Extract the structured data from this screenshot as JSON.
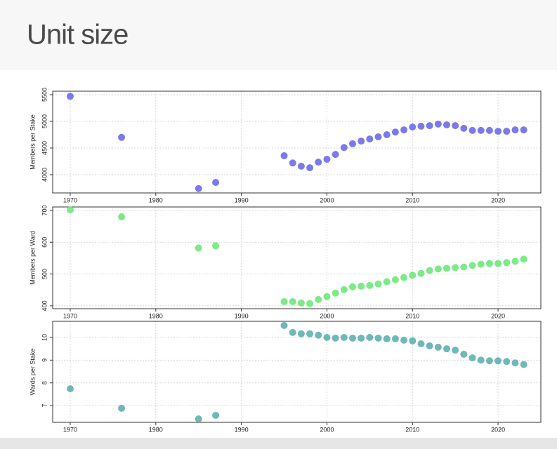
{
  "title": "Unit size",
  "chart_data": [
    {
      "type": "scatter",
      "y_label": "Members per Stake",
      "color": "#6b6bea",
      "x": [
        1970,
        1976,
        1985,
        1987,
        1995,
        1996,
        1997,
        1998,
        1999,
        2000,
        2001,
        2002,
        2003,
        2004,
        2005,
        2006,
        2007,
        2008,
        2009,
        2010,
        2011,
        2012,
        2013,
        2014,
        2015,
        2016,
        2017,
        2018,
        2019,
        2020,
        2021,
        2022,
        2023
      ],
      "values": [
        5470,
        4700,
        3740,
        3855,
        4355,
        4220,
        4160,
        4130,
        4235,
        4290,
        4380,
        4510,
        4580,
        4630,
        4670,
        4710,
        4750,
        4800,
        4840,
        4895,
        4910,
        4920,
        4950,
        4935,
        4920,
        4870,
        4830,
        4830,
        4830,
        4815,
        4815,
        4840,
        4840
      ],
      "xlim": [
        1967.95,
        2025
      ],
      "xticks": [
        1970,
        1980,
        1990,
        2000,
        2010,
        2020
      ],
      "ylim": [
        3658,
        5566
      ],
      "yticks": [
        4000,
        4500,
        5000,
        5500
      ],
      "grid": true
    },
    {
      "type": "scatter",
      "y_label": "Members per Ward",
      "color": "#6de87a",
      "x": [
        1970,
        1976,
        1985,
        1987,
        1995,
        1996,
        1997,
        1998,
        1999,
        2000,
        2001,
        2002,
        2003,
        2004,
        2005,
        2006,
        2007,
        2008,
        2009,
        2010,
        2011,
        2012,
        2013,
        2014,
        2015,
        2016,
        2017,
        2018,
        2019,
        2020,
        2021,
        2022,
        2023
      ],
      "values": [
        702,
        680,
        582,
        589,
        413,
        413,
        409,
        407,
        420,
        429,
        440,
        451,
        460,
        462,
        464,
        469,
        476,
        482,
        489,
        496,
        502,
        511,
        516,
        518,
        520,
        522,
        527,
        531,
        533,
        533,
        536,
        540,
        547
      ],
      "xlim": [
        1967.95,
        2025
      ],
      "xticks": [
        1970,
        1980,
        1990,
        2000,
        2010,
        2020
      ],
      "ylim": [
        391,
        711
      ],
      "yticks": [
        400,
        500,
        600,
        700
      ],
      "grid": true
    },
    {
      "type": "scatter",
      "y_label": "Wards per Stake",
      "color": "#5fb0b0",
      "x": [
        1970,
        1976,
        1985,
        1987,
        1995,
        1996,
        1997,
        1998,
        1999,
        2000,
        2001,
        2002,
        2003,
        2004,
        2005,
        2006,
        2007,
        2008,
        2009,
        2010,
        2011,
        2012,
        2013,
        2014,
        2015,
        2016,
        2017,
        2018,
        2019,
        2020,
        2021,
        2022,
        2023
      ],
      "values": [
        7.74,
        6.88,
        6.41,
        6.57,
        10.53,
        10.22,
        10.16,
        10.16,
        10.1,
        10.0,
        9.97,
        10.0,
        9.97,
        9.97,
        10.0,
        9.97,
        9.94,
        9.94,
        9.88,
        9.85,
        9.72,
        9.63,
        9.57,
        9.5,
        9.44,
        9.26,
        9.1,
        9.0,
        8.97,
        8.97,
        8.94,
        8.88,
        8.81
      ],
      "xlim": [
        1967.95,
        2025
      ],
      "xticks": [
        1970,
        1980,
        1990,
        2000,
        2010,
        2020
      ],
      "ylim": [
        6.26,
        10.71
      ],
      "yticks": [
        7,
        8,
        9,
        10
      ],
      "grid": true
    }
  ]
}
